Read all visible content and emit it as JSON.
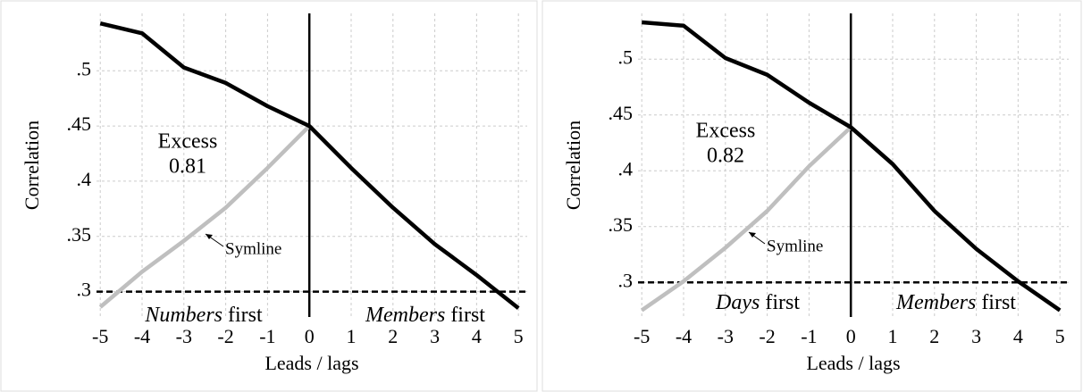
{
  "chart_data": [
    {
      "type": "line",
      "x_label": "Leads / lags",
      "y_label": "Correlation",
      "x": [
        -5,
        -4,
        -3,
        -2,
        -1,
        0,
        1,
        2,
        3,
        4,
        5
      ],
      "series": [
        {
          "color": "#000000",
          "values": [
            0.543,
            0.534,
            0.503,
            0.489,
            0.468,
            0.45,
            0.412,
            0.376,
            0.343,
            0.315,
            0.285
          ]
        },
        {
          "name": "Symline",
          "color": "#bfbfbf",
          "values": [
            0.286,
            0.318,
            0.346,
            0.376,
            0.412,
            0.45,
            null,
            null,
            null,
            null,
            null
          ]
        }
      ],
      "xlim": [
        -5.09,
        5.21
      ],
      "ylim": [
        0.277,
        0.552
      ],
      "xticks": [
        -5,
        -4,
        -3,
        -2,
        -1,
        0,
        1,
        2,
        3,
        4,
        5
      ],
      "yticks": [
        {
          "value": 0.3,
          "label": ".3"
        },
        {
          "value": 0.35,
          "label": ".35"
        },
        {
          "value": 0.4,
          "label": ".4"
        },
        {
          "value": 0.45,
          "label": ".45"
        },
        {
          "value": 0.5,
          "label": ".5"
        }
      ],
      "grid": true,
      "hline": 0.3,
      "vline": 0,
      "annotations": [
        "Excess",
        "0.81"
      ],
      "left_region": {
        "emphasis": "Numbers",
        "rest": "first"
      },
      "right_region": {
        "emphasis": "Members",
        "rest": "first"
      }
    },
    {
      "type": "line",
      "x_label": "Leads / lags",
      "y_label": "Correlation",
      "x": [
        -5,
        -4,
        -3,
        -2,
        -1,
        0,
        1,
        2,
        3,
        4,
        5
      ],
      "series": [
        {
          "color": "#000000",
          "values": [
            0.533,
            0.53,
            0.501,
            0.486,
            0.461,
            0.439,
            0.406,
            0.364,
            0.33,
            0.301,
            0.275
          ]
        },
        {
          "name": "Symline",
          "color": "#bfbfbf",
          "values": [
            0.275,
            0.301,
            0.331,
            0.364,
            0.404,
            0.439,
            null,
            null,
            null,
            null,
            null
          ]
        }
      ],
      "xlim": [
        -5.09,
        5.21
      ],
      "ylim": [
        0.269,
        0.541
      ],
      "xticks": [
        -5,
        -4,
        -3,
        -2,
        -1,
        0,
        1,
        2,
        3,
        4,
        5
      ],
      "yticks": [
        {
          "value": 0.3,
          "label": ".3"
        },
        {
          "value": 0.35,
          "label": ".35"
        },
        {
          "value": 0.4,
          "label": ".4"
        },
        {
          "value": 0.45,
          "label": ".45"
        },
        {
          "value": 0.5,
          "label": ".5"
        }
      ],
      "grid": true,
      "hline": 0.3,
      "vline": 0,
      "annotations": [
        "Excess",
        "0.82"
      ],
      "left_region": {
        "emphasis": "Days",
        "rest": "first"
      },
      "right_region": {
        "emphasis": "Members",
        "rest": "first"
      }
    }
  ]
}
